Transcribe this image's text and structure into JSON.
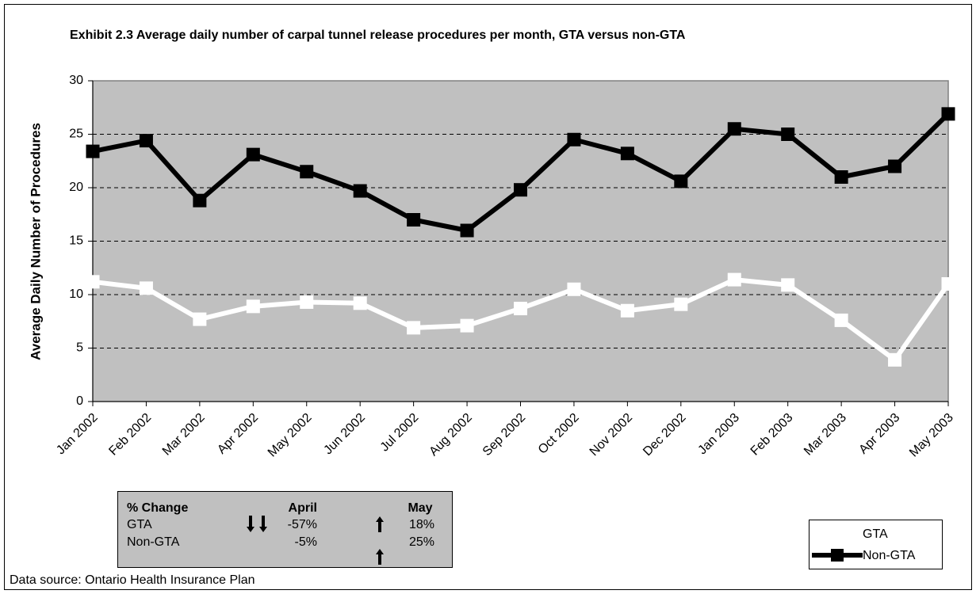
{
  "chart_data": {
    "type": "line",
    "title": "Exhibit 2.3 Average daily number of carpal tunnel release procedures per month, GTA versus non-GTA",
    "y_label": "Average Daily Number of Procedures",
    "categories": [
      "Jan 2002",
      "Feb 2002",
      "Mar 2002",
      "Apr 2002",
      "May 2002",
      "Jun 2002",
      "Jul 2002",
      "Aug 2002",
      "Sep 2002",
      "Oct 2002",
      "Nov 2002",
      "Dec 2002",
      "Jan 2003",
      "Feb 2003",
      "Mar 2003",
      "Apr 2003",
      "May 2003"
    ],
    "series": [
      {
        "name": "GTA",
        "color": "#ffffff",
        "values": [
          11.2,
          10.6,
          7.7,
          8.9,
          9.3,
          9.2,
          6.9,
          7.1,
          8.7,
          10.5,
          8.5,
          9.1,
          11.4,
          10.9,
          7.6,
          3.9,
          11.0
        ]
      },
      {
        "name": "Non-GTA",
        "color": "#000000",
        "values": [
          23.4,
          24.4,
          18.8,
          23.1,
          21.5,
          19.7,
          17.0,
          16.0,
          19.8,
          24.5,
          23.2,
          20.6,
          25.5,
          25.0,
          21.0,
          22.0,
          26.9
        ]
      }
    ],
    "ylim": [
      0,
      30
    ],
    "yticks": [
      0,
      5,
      10,
      15,
      20,
      25,
      30
    ],
    "grid": true,
    "plot_color": "#c0c0c0",
    "legend": "bottom-right",
    "change_table": {
      "header": [
        "% Change",
        "April",
        "May"
      ],
      "rows": [
        [
          "GTA",
          "-57%",
          "18%"
        ],
        [
          "Non-GTA",
          "-5%",
          "25%"
        ]
      ]
    },
    "source": "Data source: Ontario Health Insurance Plan"
  }
}
